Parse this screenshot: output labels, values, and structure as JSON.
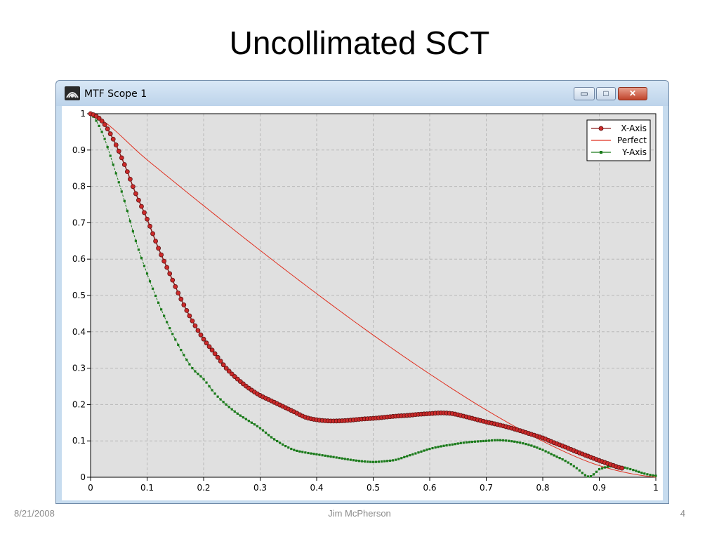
{
  "slide": {
    "title": "Uncollimated SCT",
    "footer_date": "8/21/2008",
    "footer_author": "Jim McPherson",
    "page_number": "4"
  },
  "window": {
    "title": "MTF Scope 1",
    "icon": "telescope-icon",
    "controls": {
      "minimize": "minimize-icon",
      "maximize": "maximize-icon",
      "close": "close-icon"
    }
  },
  "colors": {
    "plot_background": "#e0e0e0",
    "grid": "#b8b8b8",
    "x_axis_line": "#8b1a1a",
    "x_axis_marker": "#cc2a2a",
    "perfect": "#e03020",
    "y_axis": "#1a7a1a"
  },
  "chart_data": {
    "type": "line",
    "title": "",
    "xlabel": "",
    "ylabel": "",
    "xlim": [
      0,
      1
    ],
    "ylim": [
      0,
      1
    ],
    "xticks": [
      "0",
      "0.1",
      "0.2",
      "0.3",
      "0.4",
      "0.5",
      "0.6",
      "0.7",
      "0.8",
      "0.9",
      "1"
    ],
    "yticks": [
      "0",
      "0.1",
      "0.2",
      "0.3",
      "0.4",
      "0.5",
      "0.6",
      "0.7",
      "0.8",
      "0.9",
      "1"
    ],
    "grid": true,
    "legend_position": "top-right",
    "series": [
      {
        "name": "X-Axis",
        "style": "line-with-round-markers",
        "x_range": [
          0,
          0.94
        ],
        "points": [
          [
            0,
            1.0
          ],
          [
            0.02,
            0.98
          ],
          [
            0.04,
            0.93
          ],
          [
            0.06,
            0.86
          ],
          [
            0.08,
            0.78
          ],
          [
            0.1,
            0.71
          ],
          [
            0.12,
            0.63
          ],
          [
            0.14,
            0.56
          ],
          [
            0.16,
            0.49
          ],
          [
            0.18,
            0.43
          ],
          [
            0.2,
            0.38
          ],
          [
            0.22,
            0.34
          ],
          [
            0.24,
            0.3
          ],
          [
            0.26,
            0.27
          ],
          [
            0.28,
            0.245
          ],
          [
            0.3,
            0.225
          ],
          [
            0.32,
            0.21
          ],
          [
            0.34,
            0.195
          ],
          [
            0.36,
            0.18
          ],
          [
            0.38,
            0.165
          ],
          [
            0.4,
            0.158
          ],
          [
            0.42,
            0.155
          ],
          [
            0.44,
            0.155
          ],
          [
            0.46,
            0.157
          ],
          [
            0.48,
            0.16
          ],
          [
            0.5,
            0.162
          ],
          [
            0.52,
            0.165
          ],
          [
            0.54,
            0.168
          ],
          [
            0.56,
            0.17
          ],
          [
            0.58,
            0.173
          ],
          [
            0.6,
            0.175
          ],
          [
            0.62,
            0.177
          ],
          [
            0.64,
            0.175
          ],
          [
            0.66,
            0.168
          ],
          [
            0.68,
            0.16
          ],
          [
            0.7,
            0.152
          ],
          [
            0.72,
            0.145
          ],
          [
            0.74,
            0.137
          ],
          [
            0.76,
            0.128
          ],
          [
            0.78,
            0.118
          ],
          [
            0.8,
            0.108
          ],
          [
            0.82,
            0.095
          ],
          [
            0.84,
            0.083
          ],
          [
            0.86,
            0.07
          ],
          [
            0.88,
            0.058
          ],
          [
            0.9,
            0.046
          ],
          [
            0.92,
            0.035
          ],
          [
            0.94,
            0.025
          ]
        ]
      },
      {
        "name": "Perfect",
        "style": "line",
        "points": [
          [
            0,
            1.0
          ],
          [
            0.1,
            0.873
          ],
          [
            0.2,
            0.747
          ],
          [
            0.3,
            0.624
          ],
          [
            0.4,
            0.505
          ],
          [
            0.5,
            0.391
          ],
          [
            0.6,
            0.284
          ],
          [
            0.7,
            0.185
          ],
          [
            0.8,
            0.099
          ],
          [
            0.9,
            0.032
          ],
          [
            1.0,
            0.0
          ]
        ]
      },
      {
        "name": "Y-Axis",
        "style": "line-with-square-markers",
        "x_range": [
          0,
          1
        ],
        "points": [
          [
            0,
            1.0
          ],
          [
            0.02,
            0.95
          ],
          [
            0.04,
            0.86
          ],
          [
            0.06,
            0.76
          ],
          [
            0.08,
            0.65
          ],
          [
            0.1,
            0.56
          ],
          [
            0.12,
            0.48
          ],
          [
            0.14,
            0.41
          ],
          [
            0.16,
            0.35
          ],
          [
            0.18,
            0.3
          ],
          [
            0.2,
            0.27
          ],
          [
            0.22,
            0.23
          ],
          [
            0.24,
            0.2
          ],
          [
            0.26,
            0.175
          ],
          [
            0.28,
            0.155
          ],
          [
            0.3,
            0.135
          ],
          [
            0.32,
            0.11
          ],
          [
            0.34,
            0.09
          ],
          [
            0.36,
            0.075
          ],
          [
            0.38,
            0.068
          ],
          [
            0.4,
            0.063
          ],
          [
            0.42,
            0.058
          ],
          [
            0.44,
            0.053
          ],
          [
            0.46,
            0.048
          ],
          [
            0.48,
            0.044
          ],
          [
            0.5,
            0.042
          ],
          [
            0.52,
            0.044
          ],
          [
            0.54,
            0.048
          ],
          [
            0.56,
            0.058
          ],
          [
            0.58,
            0.068
          ],
          [
            0.6,
            0.078
          ],
          [
            0.62,
            0.085
          ],
          [
            0.64,
            0.09
          ],
          [
            0.66,
            0.095
          ],
          [
            0.68,
            0.098
          ],
          [
            0.7,
            0.1
          ],
          [
            0.72,
            0.102
          ],
          [
            0.74,
            0.1
          ],
          [
            0.76,
            0.095
          ],
          [
            0.78,
            0.087
          ],
          [
            0.8,
            0.075
          ],
          [
            0.82,
            0.06
          ],
          [
            0.84,
            0.045
          ],
          [
            0.86,
            0.025
          ],
          [
            0.88,
            0.002
          ],
          [
            0.89,
            0.008
          ],
          [
            0.9,
            0.022
          ],
          [
            0.92,
            0.03
          ],
          [
            0.94,
            0.028
          ],
          [
            0.96,
            0.02
          ],
          [
            0.98,
            0.01
          ],
          [
            1.0,
            0.004
          ]
        ]
      }
    ]
  }
}
